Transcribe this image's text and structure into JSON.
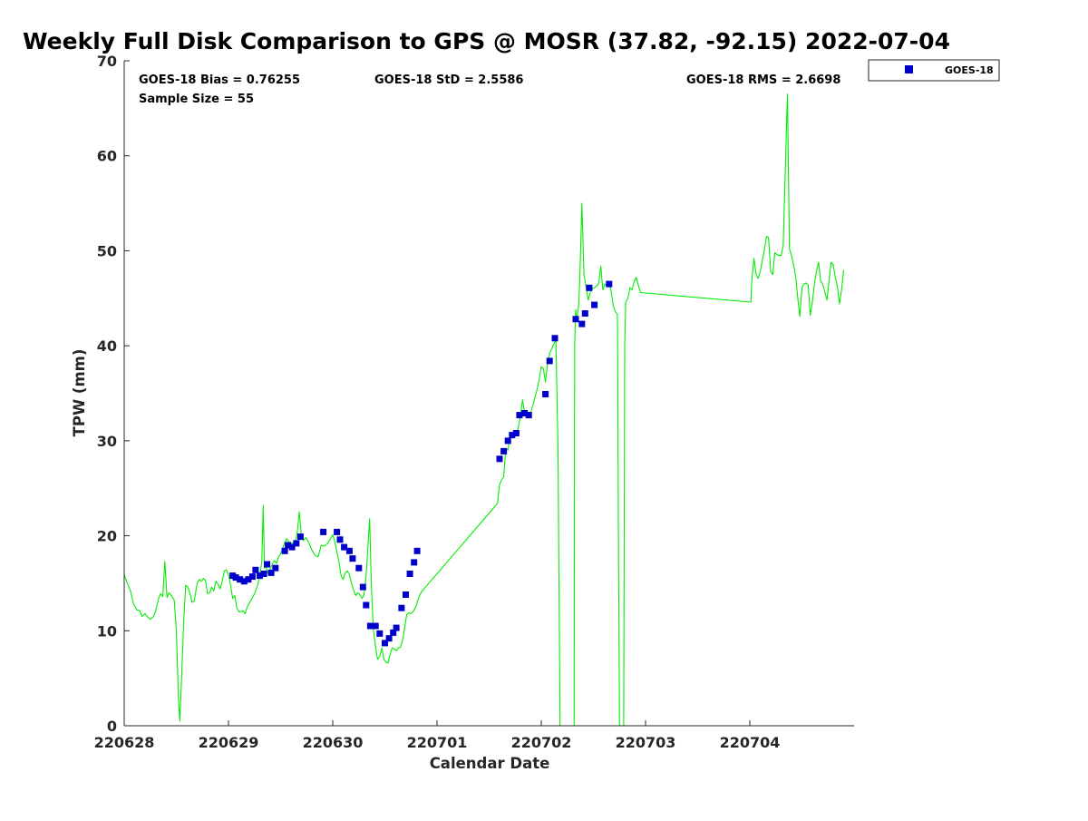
{
  "chart_data": {
    "type": "scatter",
    "title": "Weekly Full Disk Comparison to GPS @ MOSR (37.82, -92.15) 2022-07-04",
    "xlabel": "Calendar Date",
    "ylabel": "TPW (mm)",
    "xlim": [
      0,
      7
    ],
    "ylim": [
      0,
      70
    ],
    "x_ticks": [
      {
        "value": 0,
        "label": "220628"
      },
      {
        "value": 1,
        "label": "220629"
      },
      {
        "value": 2,
        "label": "220630"
      },
      {
        "value": 3,
        "label": "220701"
      },
      {
        "value": 4,
        "label": "220702"
      },
      {
        "value": 5,
        "label": "220703"
      },
      {
        "value": 6,
        "label": "220704"
      }
    ],
    "y_ticks": [
      0,
      10,
      20,
      30,
      40,
      50,
      60,
      70
    ],
    "grid": false,
    "legend": {
      "placement": "outside-top-right",
      "entries": [
        "GOES-18"
      ]
    },
    "annotations": {
      "bias": "GOES-18 Bias = 0.76255",
      "std": "GOES-18 StD = 2.5586",
      "rms": "GOES-18 RMS = 2.6698",
      "sample_size": "Sample Size = 55"
    },
    "series": [
      {
        "name": "GOES-18",
        "kind": "scatter",
        "color": "#0000cc",
        "marker": "square",
        "points": [
          [
            1.04,
            15.8
          ],
          [
            1.07,
            15.6
          ],
          [
            1.11,
            15.4
          ],
          [
            1.15,
            15.2
          ],
          [
            1.19,
            15.4
          ],
          [
            1.23,
            15.7
          ],
          [
            1.26,
            16.4
          ],
          [
            1.3,
            15.8
          ],
          [
            1.34,
            16.0
          ],
          [
            1.37,
            17.0
          ],
          [
            1.41,
            16.1
          ],
          [
            1.45,
            16.6
          ],
          [
            1.54,
            18.4
          ],
          [
            1.57,
            19.0
          ],
          [
            1.61,
            18.8
          ],
          [
            1.65,
            19.2
          ],
          [
            1.69,
            19.9
          ],
          [
            1.91,
            20.4
          ],
          [
            2.04,
            20.4
          ],
          [
            2.07,
            19.6
          ],
          [
            2.11,
            18.8
          ],
          [
            2.16,
            18.4
          ],
          [
            2.19,
            17.6
          ],
          [
            2.25,
            16.6
          ],
          [
            2.29,
            14.6
          ],
          [
            2.32,
            12.7
          ],
          [
            2.36,
            10.5
          ],
          [
            2.41,
            10.5
          ],
          [
            2.45,
            9.7
          ],
          [
            2.5,
            8.7
          ],
          [
            2.54,
            9.2
          ],
          [
            2.58,
            9.8
          ],
          [
            2.61,
            10.3
          ],
          [
            2.66,
            12.4
          ],
          [
            2.7,
            13.8
          ],
          [
            2.74,
            16.0
          ],
          [
            2.78,
            17.2
          ],
          [
            2.81,
            18.4
          ],
          [
            3.6,
            28.1
          ],
          [
            3.64,
            28.9
          ],
          [
            3.68,
            30.0
          ],
          [
            3.72,
            30.6
          ],
          [
            3.76,
            30.8
          ],
          [
            3.79,
            32.7
          ],
          [
            3.84,
            32.9
          ],
          [
            3.88,
            32.7
          ],
          [
            4.04,
            34.9
          ],
          [
            4.08,
            38.4
          ],
          [
            4.13,
            40.8
          ],
          [
            4.33,
            42.8
          ],
          [
            4.39,
            42.3
          ],
          [
            4.42,
            43.4
          ],
          [
            4.46,
            46.1
          ],
          [
            4.51,
            44.3
          ],
          [
            4.65,
            46.5
          ]
        ]
      },
      {
        "name": "GPS",
        "kind": "line",
        "color": "#00ee00",
        "points": [
          [
            0.0,
            15.9
          ],
          [
            0.03,
            15.0
          ],
          [
            0.06,
            14.2
          ],
          [
            0.09,
            12.8
          ],
          [
            0.12,
            12.2
          ],
          [
            0.15,
            12.1
          ],
          [
            0.17,
            11.5
          ],
          [
            0.2,
            11.8
          ],
          [
            0.22,
            11.5
          ],
          [
            0.25,
            11.2
          ],
          [
            0.28,
            11.5
          ],
          [
            0.3,
            12.0
          ],
          [
            0.33,
            13.4
          ],
          [
            0.35,
            13.9
          ],
          [
            0.37,
            13.6
          ],
          [
            0.39,
            17.3
          ],
          [
            0.41,
            13.5
          ],
          [
            0.43,
            14.0
          ],
          [
            0.46,
            13.6
          ],
          [
            0.48,
            13.2
          ],
          [
            0.5,
            10.0
          ],
          [
            0.52,
            3.0
          ],
          [
            0.5334,
            0.5
          ],
          [
            0.55,
            5.0
          ],
          [
            0.57,
            11.0
          ],
          [
            0.59,
            14.8
          ],
          [
            0.61,
            14.6
          ],
          [
            0.63,
            14.0
          ],
          [
            0.65,
            13.0
          ],
          [
            0.67,
            13.1
          ],
          [
            0.7,
            15.0
          ],
          [
            0.72,
            15.4
          ],
          [
            0.74,
            15.2
          ],
          [
            0.76,
            15.5
          ],
          [
            0.78,
            15.3
          ],
          [
            0.8,
            13.9
          ],
          [
            0.82,
            14.0
          ],
          [
            0.84,
            14.6
          ],
          [
            0.86,
            14.2
          ],
          [
            0.88,
            15.2
          ],
          [
            0.9,
            14.9
          ],
          [
            0.92,
            14.4
          ],
          [
            0.94,
            15.2
          ],
          [
            0.96,
            16.3
          ],
          [
            0.98,
            16.4
          ],
          [
            1.0,
            15.9
          ],
          [
            1.02,
            14.8
          ],
          [
            1.04,
            13.4
          ],
          [
            1.06,
            13.7
          ],
          [
            1.08,
            12.4
          ],
          [
            1.1,
            12.0
          ],
          [
            1.12,
            12.0
          ],
          [
            1.14,
            12.1
          ],
          [
            1.16,
            11.8
          ],
          [
            1.18,
            12.5
          ],
          [
            1.2,
            12.9
          ],
          [
            1.22,
            13.3
          ],
          [
            1.25,
            13.9
          ],
          [
            1.28,
            14.8
          ],
          [
            1.3,
            15.8
          ],
          [
            1.32,
            17.3
          ],
          [
            1.3329,
            23.2
          ],
          [
            1.345,
            16.6
          ],
          [
            1.36,
            16.7
          ],
          [
            1.38,
            16.0
          ],
          [
            1.4,
            16.5
          ],
          [
            1.42,
            17.0
          ],
          [
            1.44,
            17.4
          ],
          [
            1.46,
            17.1
          ],
          [
            1.48,
            17.8
          ],
          [
            1.5,
            18.1
          ],
          [
            1.52,
            18.7
          ],
          [
            1.54,
            19.3
          ],
          [
            1.56,
            19.7
          ],
          [
            1.58,
            19.3
          ],
          [
            1.6,
            19.3
          ],
          [
            1.62,
            19.1
          ],
          [
            1.64,
            19.2
          ],
          [
            1.66,
            20.4
          ],
          [
            1.68,
            22.5
          ],
          [
            1.7,
            19.9
          ],
          [
            1.72,
            19.5
          ],
          [
            1.74,
            19.8
          ],
          [
            1.76,
            19.5
          ],
          [
            1.78,
            19.0
          ],
          [
            1.8,
            18.5
          ],
          [
            1.83,
            17.9
          ],
          [
            1.86,
            17.8
          ],
          [
            1.89,
            19.0
          ],
          [
            1.92,
            18.9
          ],
          [
            1.95,
            19.2
          ],
          [
            1.98,
            19.7
          ],
          [
            2.0,
            20.1
          ],
          [
            2.02,
            19.4
          ],
          [
            2.04,
            18.3
          ],
          [
            2.06,
            17.2
          ],
          [
            2.08,
            15.8
          ],
          [
            2.1,
            15.4
          ],
          [
            2.12,
            16.1
          ],
          [
            2.14,
            16.3
          ],
          [
            2.16,
            15.9
          ],
          [
            2.18,
            15.0
          ],
          [
            2.2,
            14.3
          ],
          [
            2.22,
            13.7
          ],
          [
            2.24,
            14.0
          ],
          [
            2.26,
            13.8
          ],
          [
            2.28,
            13.4
          ],
          [
            2.3,
            13.8
          ],
          [
            2.32,
            15.8
          ],
          [
            2.3538,
            21.8
          ],
          [
            2.37,
            14.7
          ],
          [
            2.39,
            10.1
          ],
          [
            2.41,
            8.3
          ],
          [
            2.43,
            7.0
          ],
          [
            2.45,
            7.3
          ],
          [
            2.47,
            8.2
          ],
          [
            2.49,
            7.0
          ],
          [
            2.51,
            6.7
          ],
          [
            2.53,
            6.6
          ],
          [
            2.55,
            7.5
          ],
          [
            2.57,
            8.2
          ],
          [
            2.59,
            8.1
          ],
          [
            2.61,
            7.9
          ],
          [
            2.63,
            8.2
          ],
          [
            2.65,
            8.3
          ],
          [
            2.67,
            9.0
          ],
          [
            2.69,
            10.4
          ],
          [
            2.71,
            11.7
          ],
          [
            2.73,
            11.9
          ],
          [
            2.75,
            11.8
          ],
          [
            2.77,
            12.0
          ],
          [
            2.8,
            12.6
          ],
          [
            2.82,
            13.4
          ],
          [
            2.85,
            14.1
          ],
          [
            3.58,
            23.4
          ],
          [
            3.6,
            25.4
          ],
          [
            3.62,
            25.9
          ],
          [
            3.64,
            26.2
          ],
          [
            3.66,
            29.2
          ],
          [
            3.68,
            29.0
          ],
          [
            3.7,
            30.5
          ],
          [
            3.72,
            30.4
          ],
          [
            3.74,
            30.9
          ],
          [
            3.76,
            30.8
          ],
          [
            3.78,
            31.4
          ],
          [
            3.8,
            32.6
          ],
          [
            3.82,
            34.3
          ],
          [
            3.84,
            33.0
          ],
          [
            3.86,
            32.7
          ],
          [
            3.88,
            32.4
          ],
          [
            3.9,
            33.0
          ],
          [
            3.92,
            33.8
          ],
          [
            3.94,
            34.6
          ],
          [
            3.96,
            35.4
          ],
          [
            3.98,
            36.5
          ],
          [
            4.0,
            37.8
          ],
          [
            4.02,
            37.6
          ],
          [
            4.04,
            36.2
          ],
          [
            4.06,
            38.1
          ],
          [
            4.08,
            39.2
          ],
          [
            4.1,
            39.7
          ],
          [
            4.12,
            40.2
          ],
          [
            4.14,
            40.6
          ],
          [
            4.16,
            29.7
          ],
          [
            4.18,
            0.0
          ],
          [
            4.315,
            0.0
          ],
          [
            4.32,
            40.0
          ],
          [
            4.33,
            43.8
          ],
          [
            4.34,
            42.6
          ],
          [
            4.36,
            44.5
          ],
          [
            4.37,
            47.1
          ],
          [
            4.3894,
            55.0
          ],
          [
            4.41,
            47.5
          ],
          [
            4.43,
            46.2
          ],
          [
            4.45,
            44.8
          ],
          [
            4.47,
            45.6
          ],
          [
            4.49,
            46.0
          ],
          [
            4.51,
            46.1
          ],
          [
            4.53,
            46.3
          ],
          [
            4.55,
            46.5
          ],
          [
            4.57,
            48.4
          ],
          [
            4.59,
            45.9
          ],
          [
            4.61,
            46.5
          ],
          [
            4.63,
            46.3
          ],
          [
            4.65,
            46.5
          ],
          [
            4.67,
            45.8
          ],
          [
            4.69,
            44.2
          ],
          [
            4.71,
            43.6
          ],
          [
            4.73,
            43.3
          ],
          [
            4.74,
            20.0
          ],
          [
            4.75,
            0.0
          ],
          [
            4.79,
            0.0
          ],
          [
            4.8,
            40.0
          ],
          [
            4.81,
            44.6
          ],
          [
            4.83,
            45.0
          ],
          [
            4.85,
            46.1
          ],
          [
            4.87,
            45.9
          ],
          [
            4.89,
            46.7
          ],
          [
            4.91,
            47.2
          ],
          [
            4.93,
            46.4
          ],
          [
            4.95,
            45.6
          ],
          [
            6.01,
            44.6
          ],
          [
            6.02,
            47.0
          ],
          [
            6.04,
            49.2
          ],
          [
            6.06,
            47.5
          ],
          [
            6.08,
            47.1
          ],
          [
            6.1,
            47.8
          ],
          [
            6.12,
            49.0
          ],
          [
            6.14,
            50.1
          ],
          [
            6.16,
            51.5
          ],
          [
            6.18,
            51.4
          ],
          [
            6.2,
            47.8
          ],
          [
            6.22,
            47.5
          ],
          [
            6.24,
            49.8
          ],
          [
            6.26,
            49.6
          ],
          [
            6.28,
            49.5
          ],
          [
            6.3,
            49.5
          ],
          [
            6.32,
            50.5
          ],
          [
            6.3606,
            66.5
          ],
          [
            6.38,
            50.2
          ],
          [
            6.4,
            49.5
          ],
          [
            6.42,
            48.5
          ],
          [
            6.44,
            47.3
          ],
          [
            6.46,
            45.0
          ],
          [
            6.48,
            43.1
          ],
          [
            6.5,
            46.1
          ],
          [
            6.52,
            46.5
          ],
          [
            6.54,
            46.6
          ],
          [
            6.56,
            46.4
          ],
          [
            6.58,
            43.2
          ],
          [
            6.6,
            44.6
          ],
          [
            6.62,
            46.5
          ],
          [
            6.64,
            47.9
          ],
          [
            6.66,
            48.8
          ],
          [
            6.68,
            46.8
          ],
          [
            6.7,
            46.5
          ],
          [
            6.72,
            45.6
          ],
          [
            6.74,
            44.8
          ],
          [
            6.76,
            46.9
          ],
          [
            6.78,
            48.8
          ],
          [
            6.8,
            48.5
          ],
          [
            6.82,
            47.2
          ],
          [
            6.84,
            46.2
          ],
          [
            6.86,
            44.4
          ],
          [
            6.88,
            45.9
          ],
          [
            6.9,
            48.0
          ]
        ]
      }
    ]
  }
}
